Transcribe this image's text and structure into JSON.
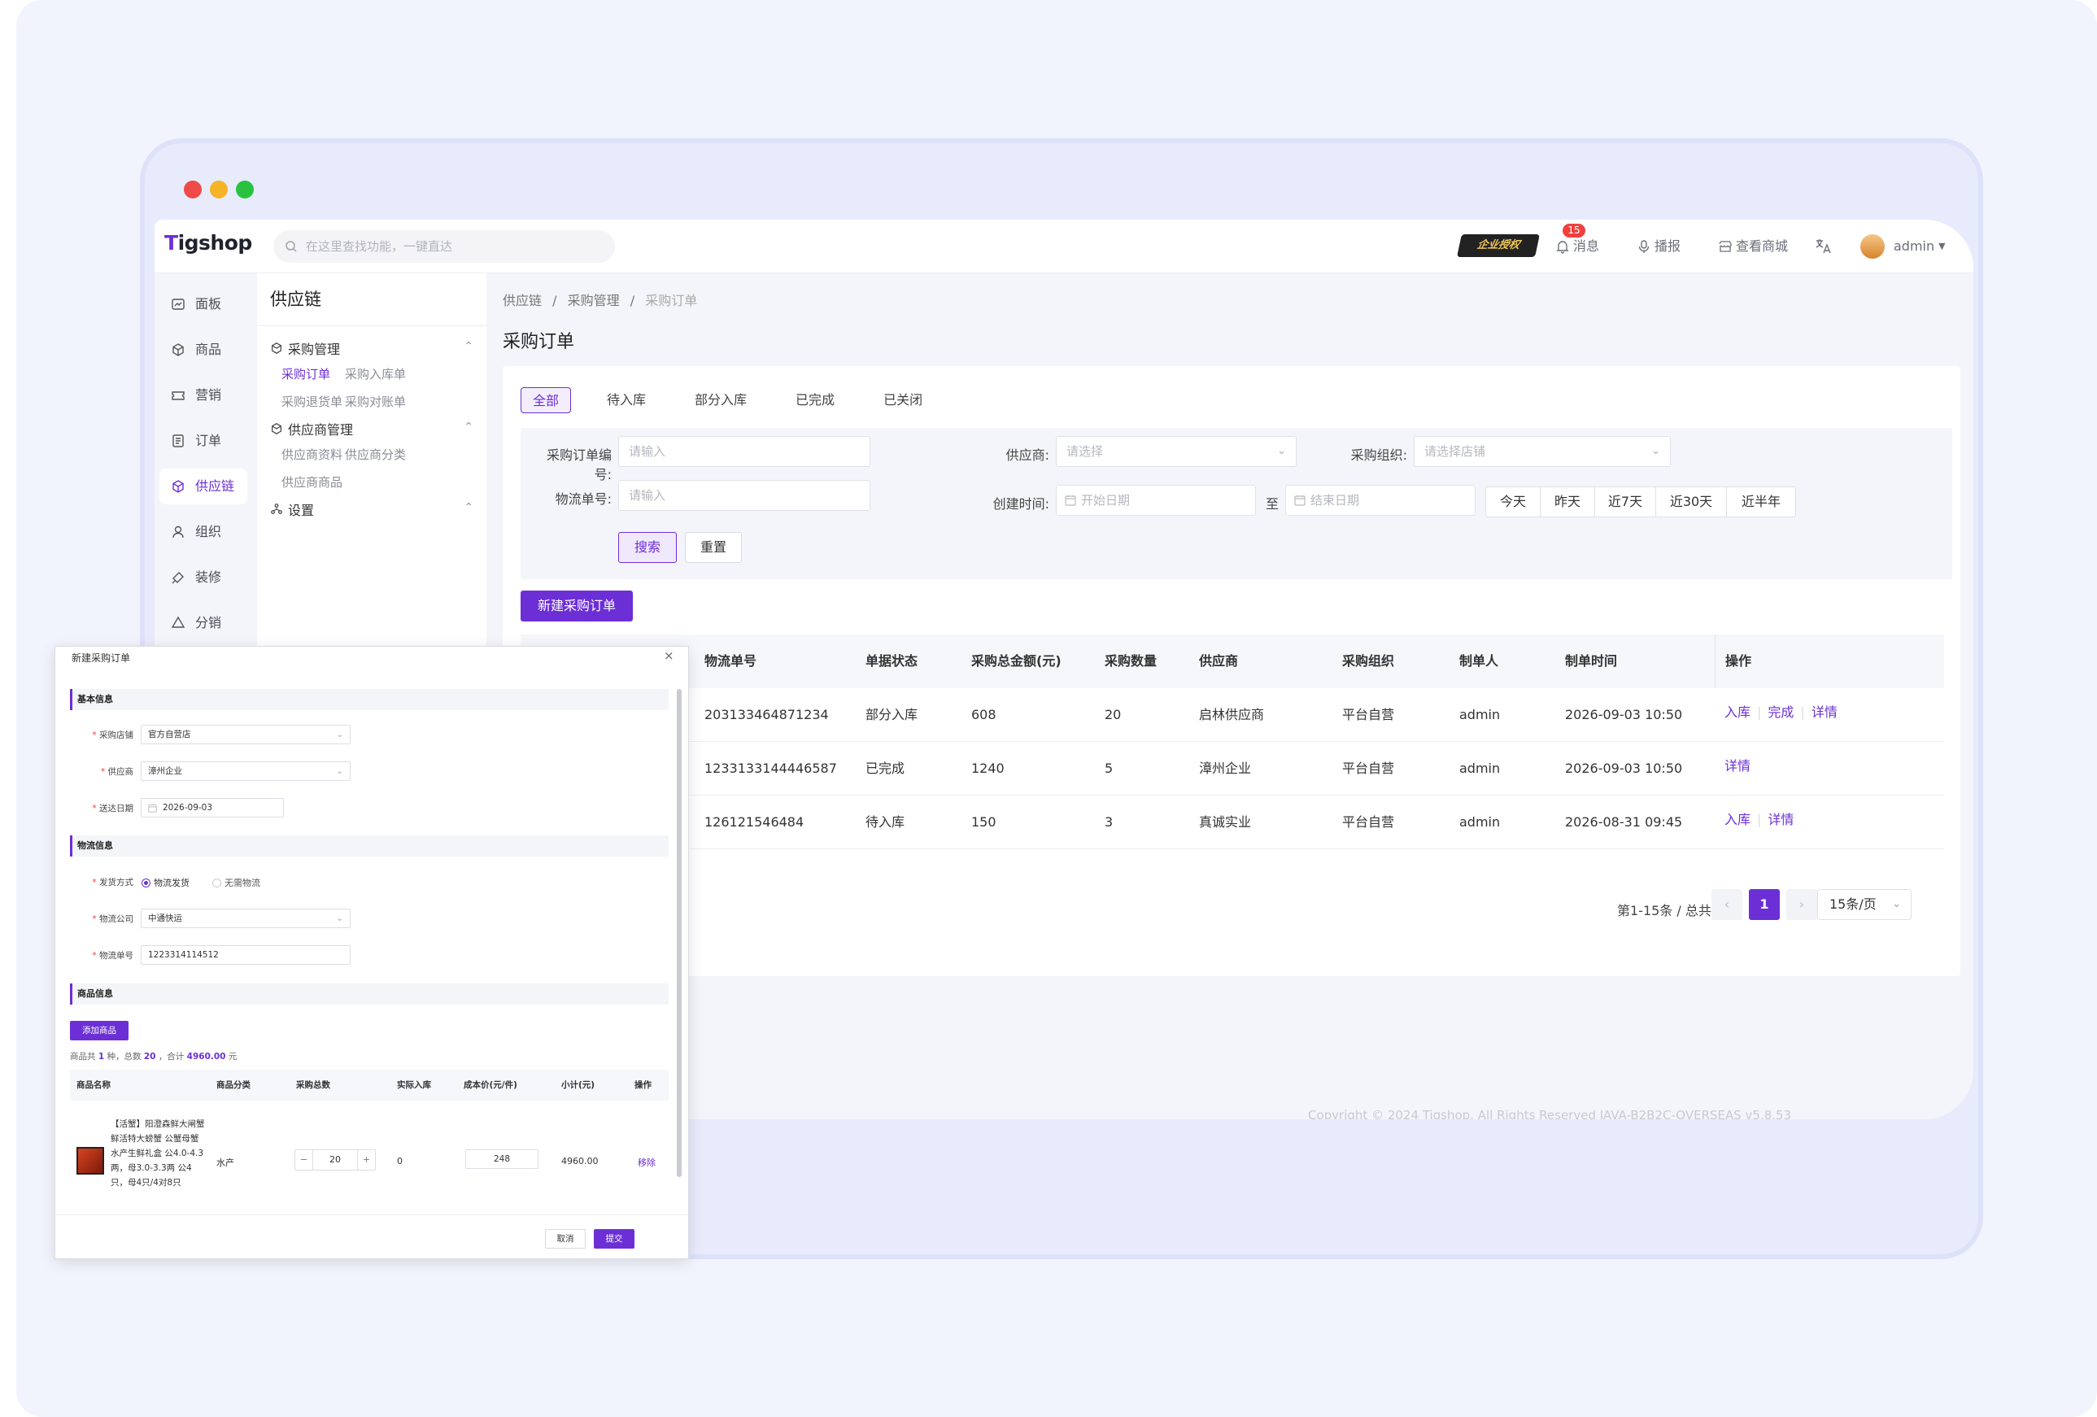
{
  "topbar": {
    "logo": "Tigshop",
    "search_placeholder": "在这里查找功能，一键直达",
    "enterprise_badge": "企业授权",
    "notification_count": "15",
    "messages": "消息",
    "broadcast": "播报",
    "view_store": "查看商城",
    "user": "admin"
  },
  "nav": [
    "面板",
    "商品",
    "营销",
    "订单",
    "供应链",
    "组织",
    "装修",
    "分销"
  ],
  "sidebar2": {
    "title": "供应链",
    "group1": "采购管理",
    "g1_items": [
      "采购订单",
      "采购入库单",
      "采购退货单",
      "采购对账单"
    ],
    "group2": "供应商管理",
    "g2_items": [
      "供应商资料",
      "供应商分类",
      "供应商商品"
    ],
    "group3": "设置"
  },
  "breadcrumb": [
    "供应链",
    "/",
    "采购管理",
    "/",
    "采购订单"
  ],
  "page_title": "采购订单",
  "tabs": [
    "全部",
    "待入库",
    "部分入库",
    "已完成",
    "已关闭"
  ],
  "filter": {
    "order_no_label": "采购订单编号:",
    "order_no_ph": "请输入",
    "supplier_label": "供应商:",
    "supplier_ph": "请选择",
    "org_label": "采购组织:",
    "org_ph": "请选择店铺",
    "logistics_label": "物流单号:",
    "logistics_ph": "请输入",
    "created_label": "创建时间:",
    "start_ph": "开始日期",
    "to": "至",
    "end_ph": "结束日期",
    "quick": [
      "今天",
      "昨天",
      "近7天",
      "近30天",
      "近半年"
    ],
    "search": "搜索",
    "reset": "重置"
  },
  "new_order_button": "新建采购订单",
  "table": {
    "headers": [
      "物流单号",
      "单据状态",
      "采购总金额(元)",
      "采购数量",
      "供应商",
      "采购组织",
      "制单人",
      "制单时间",
      "操作"
    ],
    "rows": [
      {
        "logistics": "203133464871234",
        "status": "部分入库",
        "amount": "608",
        "qty": "20",
        "supplier": "启林供应商",
        "org": "平台自营",
        "maker": "admin",
        "time": "2026-09-03 10:50",
        "ops": [
          "入库",
          "完成",
          "详情"
        ]
      },
      {
        "logistics": "1233133144446587",
        "status": "已完成",
        "amount": "1240",
        "qty": "5",
        "supplier": "漳州企业",
        "org": "平台自营",
        "maker": "admin",
        "time": "2026-09-03 10:50",
        "ops": [
          "详情"
        ]
      },
      {
        "logistics": "126121546484",
        "status": "待入库",
        "amount": "150",
        "qty": "3",
        "supplier": "真诚实业",
        "org": "平台自营",
        "maker": "admin",
        "time": "2026-08-31 09:45",
        "ops": [
          "入库",
          "详情"
        ]
      }
    ]
  },
  "pagination": {
    "info": "第1-15条 / 总共3条",
    "current": "1",
    "page_size": "15条/页"
  },
  "copyright": "Copyright © 2024 Tigshop. All Rights Reserved JAVA-B2B2C-OVERSEAS v5.8.53",
  "modal": {
    "title": "新建采购订单",
    "basic_section": "基本信息",
    "store_label": "采购店铺",
    "store_value": "官方自营店",
    "supplier_label": "供应商",
    "supplier_value": "漳州企业",
    "date_label": "送达日期",
    "date_value": "2026-09-03",
    "logistics_section": "物流信息",
    "ship_label": "发货方式",
    "ship_opt1": "物流发货",
    "ship_opt2": "无需物流",
    "company_label": "物流公司",
    "company_value": "中通快运",
    "no_label": "物流单号",
    "no_value": "1223314114512",
    "goods_section": "商品信息",
    "add_goods": "添加商品",
    "summary_prefix": "商品共",
    "summary_kinds": "1",
    "summary_mid": "种，总数",
    "summary_total": "20",
    "summary_mid2": "，合计",
    "summary_amount": "4960.00",
    "summary_suffix": "元",
    "headers": [
      "商品名称",
      "商品分类",
      "采购总数",
      "实际入库",
      "成本价(元/件)",
      "小计(元)",
      "操作"
    ],
    "item": {
      "name": "【活蟹】阳澄森鲜大闸蟹 鲜活特大螃蟹 公蟹母蟹水产生鲜礼盒 公4.0-4.3两，母3.0-3.3两 公4只，母4只/4对8只",
      "category": "水产",
      "qty": "20",
      "actual": "0",
      "cost": "248",
      "subtotal": "4960.00",
      "remove": "移除"
    },
    "cancel": "取消",
    "submit": "提交"
  }
}
